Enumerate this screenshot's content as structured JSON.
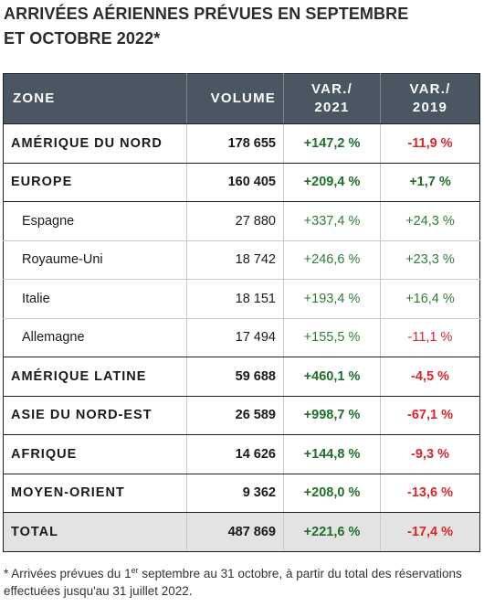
{
  "title": {
    "line1": "ARRIVÉES AÉRIENNES PRÉVUES EN SEPTEMBRE",
    "line2": "ET OCTOBRE 2022*"
  },
  "table": {
    "headers": {
      "zone": "ZONE",
      "volume": "VOLUME",
      "var2021_line1": "VAR./",
      "var2021_line2": "2021",
      "var2019_line1": "VAR./",
      "var2019_line2": "2019"
    },
    "rows": [
      {
        "zone": "AMÉRIQUE DU NORD",
        "volume": "178 655",
        "var2021": "+147,2 %",
        "var2019": "-11,9 %"
      },
      {
        "zone": "EUROPE",
        "volume": "160 405",
        "var2021": "+209,4 %",
        "var2019": "+1,7 %"
      },
      {
        "zone": "Espagne",
        "volume": "27 880",
        "var2021": "+337,4 %",
        "var2019": "+24,3 %"
      },
      {
        "zone": "Royaume-Uni",
        "volume": "18 742",
        "var2021": "+246,6 %",
        "var2019": "+23,3 %"
      },
      {
        "zone": "Italie",
        "volume": "18 151",
        "var2021": "+193,4 %",
        "var2019": "+16,4 %"
      },
      {
        "zone": "Allemagne",
        "volume": "17 494",
        "var2021": "+155,5 %",
        "var2019": "-11,1 %"
      },
      {
        "zone": "AMÉRIQUE LATINE",
        "volume": "59 688",
        "var2021": "+460,1 %",
        "var2019": "-4,5 %"
      },
      {
        "zone": "ASIE DU NORD-EST",
        "volume": "26 589",
        "var2021": "+998,7 %",
        "var2019": "-67,1 %"
      },
      {
        "zone": "AFRIQUE",
        "volume": "14 626",
        "var2021": "+144,8 %",
        "var2019": "-9,3 %"
      },
      {
        "zone": "MOYEN-ORIENT",
        "volume": "9 362",
        "var2021": "+208,0 %",
        "var2019": "-13,6 %"
      }
    ],
    "total": {
      "zone": "TOTAL",
      "volume": "487 869",
      "var2021": "+221,6 %",
      "var2019": "-17,4 %"
    }
  },
  "footnote": {
    "before_sup": "* Arrivées prévues du 1",
    "sup": "er",
    "after_sup": " septembre au 31 octobre, à partir du total des réservations effectuées jusqu'au 31 juillet 2022."
  },
  "colors": {
    "header_bg": "#4a5661",
    "positive": "#2e7d3a",
    "negative": "#d8262c",
    "total_bg": "#e3e3e3"
  }
}
